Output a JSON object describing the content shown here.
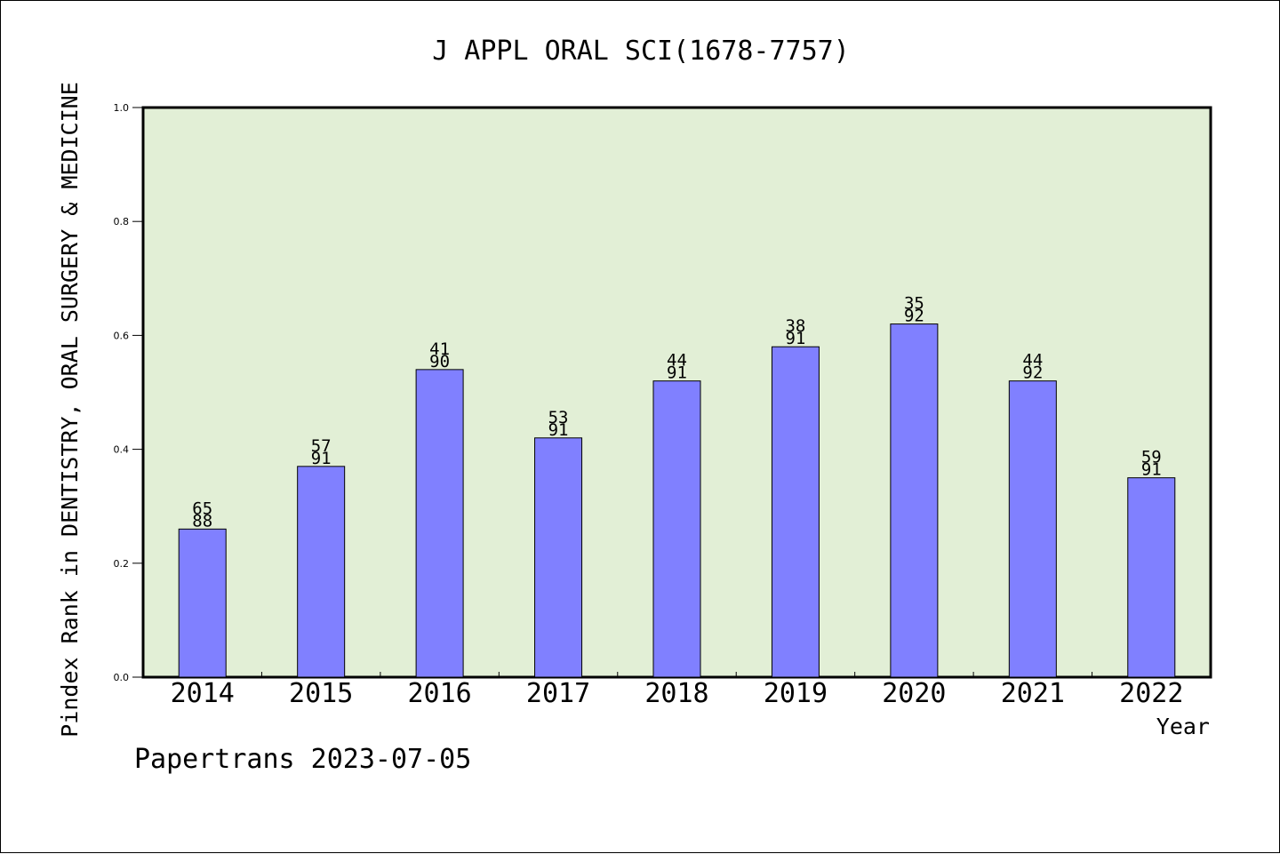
{
  "chart_data": {
    "type": "bar",
    "title": "J APPL ORAL SCI(1678-7757)",
    "xlabel": "Year",
    "ylabel": "Pindex Rank in DENTISTRY, ORAL SURGERY & MEDICINE",
    "categories": [
      "2014",
      "2015",
      "2016",
      "2017",
      "2018",
      "2019",
      "2020",
      "2021",
      "2022"
    ],
    "values": [
      0.26,
      0.37,
      0.54,
      0.42,
      0.52,
      0.58,
      0.62,
      0.52,
      0.35
    ],
    "rank_labels": [
      "65",
      "57",
      "41",
      "53",
      "44",
      "38",
      "35",
      "44",
      "59"
    ],
    "total_labels": [
      "88",
      "91",
      "90",
      "91",
      "91",
      "91",
      "92",
      "92",
      "91"
    ],
    "ylim": [
      0.0,
      1.0
    ],
    "yticks": [
      "0.0",
      "0.2",
      "0.4",
      "0.6",
      "0.8",
      "1.0"
    ],
    "grid": false,
    "colors": {
      "plot_background": "#e2efd6",
      "bar_fill": "#8080ff",
      "bar_stroke": "#000000"
    }
  },
  "footer": {
    "credit": "Papertrans 2023-07-05"
  }
}
